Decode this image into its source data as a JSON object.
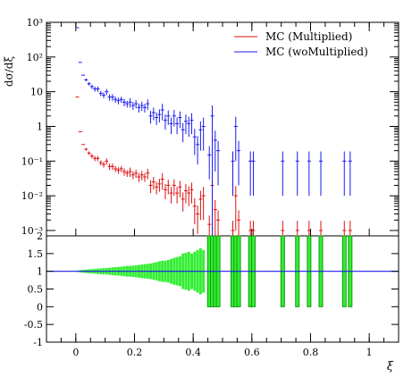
{
  "chart_data": [
    {
      "type": "scatter",
      "panel": "main",
      "ylabel": "dσ/dξ",
      "yscale": "log",
      "ylim": [
        0.0007,
        1000
      ],
      "xlim": [
        -0.1,
        1.1
      ],
      "ytick_labels": [
        "10⁻³",
        "10⁻²",
        "10⁻¹",
        "1",
        "10",
        "10²",
        "10³"
      ],
      "legend_position": "top-right",
      "series": [
        {
          "name": "MC (Multiplied)",
          "color": "#dd1111",
          "x": [
            0.005,
            0.015,
            0.025,
            0.035,
            0.045,
            0.055,
            0.065,
            0.075,
            0.085,
            0.095,
            0.105,
            0.115,
            0.125,
            0.135,
            0.145,
            0.155,
            0.165,
            0.175,
            0.185,
            0.195,
            0.205,
            0.215,
            0.225,
            0.235,
            0.245,
            0.255,
            0.265,
            0.275,
            0.285,
            0.295,
            0.305,
            0.315,
            0.325,
            0.335,
            0.345,
            0.355,
            0.365,
            0.375,
            0.385,
            0.395,
            0.405,
            0.415,
            0.425,
            0.435,
            0.455,
            0.465,
            0.475,
            0.485,
            0.535,
            0.545,
            0.555,
            0.595,
            0.605,
            0.705,
            0.755,
            0.795,
            0.835,
            0.915,
            0.935
          ],
          "y": [
            7,
            0.7,
            0.3,
            0.22,
            0.17,
            0.14,
            0.12,
            0.12,
            0.09,
            0.08,
            0.1,
            0.07,
            0.07,
            0.06,
            0.055,
            0.06,
            0.05,
            0.045,
            0.05,
            0.04,
            0.045,
            0.035,
            0.04,
            0.035,
            0.045,
            0.02,
            0.025,
            0.018,
            0.022,
            0.03,
            0.015,
            0.02,
            0.012,
            0.02,
            0.012,
            0.018,
            0.008,
            0.014,
            0.012,
            0.015,
            0.005,
            0.003,
            0.008,
            0.01,
            0.0015,
            0.02,
            0.004,
            0.002,
            0.001,
            0.01,
            0.002,
            0.001,
            0.001,
            0.001,
            0.001,
            0.001,
            0.001,
            0.001,
            0.001
          ],
          "err": [
            0,
            0,
            0,
            0.02,
            0.02,
            0.02,
            0.02,
            0.02,
            0.015,
            0.015,
            0.02,
            0.015,
            0.015,
            0.012,
            0.012,
            0.012,
            0.012,
            0.01,
            0.015,
            0.01,
            0.012,
            0.01,
            0.012,
            0.01,
            0.015,
            0.008,
            0.01,
            0.007,
            0.009,
            0.015,
            0.007,
            0.009,
            0.006,
            0.01,
            0.006,
            0.009,
            0.0045,
            0.008,
            0.007,
            0.009,
            0.0035,
            0.0022,
            0.006,
            0.008,
            0.0012,
            0.02,
            0.0035,
            0.0018,
            0.0009,
            0.009,
            0.0018,
            0.0009,
            0.0009,
            0.0009,
            0.0009,
            0.0009,
            0.0009,
            0.0009,
            0.0009
          ]
        },
        {
          "name": "MC (woMultiplied)",
          "color": "#1a1aee",
          "x": [
            0.005,
            0.015,
            0.025,
            0.035,
            0.045,
            0.055,
            0.065,
            0.075,
            0.085,
            0.095,
            0.105,
            0.115,
            0.125,
            0.135,
            0.145,
            0.155,
            0.165,
            0.175,
            0.185,
            0.195,
            0.205,
            0.215,
            0.225,
            0.235,
            0.245,
            0.255,
            0.265,
            0.275,
            0.285,
            0.295,
            0.305,
            0.315,
            0.325,
            0.335,
            0.345,
            0.355,
            0.365,
            0.375,
            0.385,
            0.395,
            0.405,
            0.415,
            0.425,
            0.435,
            0.455,
            0.465,
            0.475,
            0.485,
            0.535,
            0.545,
            0.555,
            0.595,
            0.605,
            0.705,
            0.755,
            0.795,
            0.835,
            0.915,
            0.935
          ],
          "y": [
            700,
            70,
            30,
            22,
            17,
            14,
            12,
            12,
            9,
            8,
            10,
            7,
            7,
            6,
            5.5,
            6,
            5,
            4.5,
            5,
            4,
            4.5,
            3.5,
            4,
            3.5,
            4.5,
            2,
            2.5,
            1.8,
            2.2,
            3,
            1.5,
            2,
            1.2,
            2,
            1.2,
            1.8,
            0.8,
            1.4,
            1.2,
            1.5,
            0.5,
            0.3,
            0.8,
            1,
            0.15,
            2,
            0.4,
            0.2,
            0.1,
            1,
            0.2,
            0.1,
            0.1,
            0.1,
            0.1,
            0.1,
            0.1,
            0.1,
            0.1
          ],
          "err": [
            0,
            0,
            0,
            2,
            2,
            2,
            2,
            2,
            1.5,
            1.5,
            2,
            1.5,
            1.5,
            1.2,
            1.2,
            1.2,
            1.2,
            1,
            1.5,
            1,
            1.2,
            1,
            1.2,
            1,
            1.5,
            0.8,
            1,
            0.7,
            0.9,
            1.5,
            0.7,
            0.9,
            0.6,
            1,
            0.6,
            0.9,
            0.45,
            0.8,
            0.7,
            0.9,
            0.35,
            0.22,
            0.6,
            0.8,
            0.12,
            2,
            0.35,
            0.18,
            0.09,
            0.9,
            0.18,
            0.09,
            0.09,
            0.09,
            0.09,
            0.09,
            0.09,
            0.09,
            0.09
          ]
        }
      ]
    },
    {
      "type": "bar",
      "panel": "ratio",
      "xlabel": "ξ",
      "ylim": [
        -1,
        2
      ],
      "xlim": [
        -0.1,
        1.1
      ],
      "ytick_labels": [
        "-1",
        "-0.5",
        "0",
        "0.5",
        "1",
        "1.5",
        "2"
      ],
      "xtick_labels": [
        "0",
        "0.2",
        "0.4",
        "0.6",
        "0.8",
        "1"
      ],
      "xtick_values": [
        0,
        0.2,
        0.4,
        0.6,
        0.8,
        1
      ],
      "reference_line": 1,
      "band_color": "#33ee33",
      "band_edge_color": "#119911",
      "band_center": 1,
      "band_x": [
        0.005,
        0.015,
        0.025,
        0.035,
        0.045,
        0.055,
        0.065,
        0.075,
        0.085,
        0.095,
        0.105,
        0.115,
        0.125,
        0.135,
        0.145,
        0.155,
        0.165,
        0.175,
        0.185,
        0.195,
        0.205,
        0.215,
        0.225,
        0.235,
        0.245,
        0.255,
        0.265,
        0.275,
        0.285,
        0.295,
        0.305,
        0.315,
        0.325,
        0.335,
        0.345,
        0.355,
        0.365,
        0.375,
        0.385,
        0.395,
        0.405,
        0.415,
        0.425,
        0.435,
        0.455,
        0.465,
        0.475,
        0.485,
        0.535,
        0.545,
        0.555,
        0.595,
        0.605,
        0.705,
        0.755,
        0.795,
        0.835,
        0.915,
        0.935
      ],
      "band_halfwidth": [
        0.015,
        0.03,
        0.04,
        0.05,
        0.055,
        0.06,
        0.07,
        0.075,
        0.08,
        0.09,
        0.09,
        0.1,
        0.11,
        0.12,
        0.12,
        0.13,
        0.14,
        0.15,
        0.15,
        0.16,
        0.17,
        0.18,
        0.19,
        0.2,
        0.21,
        0.22,
        0.24,
        0.26,
        0.28,
        0.3,
        0.3,
        0.32,
        0.35,
        0.38,
        0.4,
        0.42,
        0.5,
        0.52,
        0.55,
        0.5,
        0.55,
        0.6,
        0.65,
        0.6,
        1,
        1,
        1,
        1,
        1,
        1,
        1,
        1,
        1,
        1,
        1,
        1,
        1,
        1,
        1
      ],
      "band_binwidth": 0.009
    }
  ],
  "legend": [
    {
      "label": "MC (Multiplied)"
    },
    {
      "label": "MC (woMultiplied)"
    }
  ]
}
